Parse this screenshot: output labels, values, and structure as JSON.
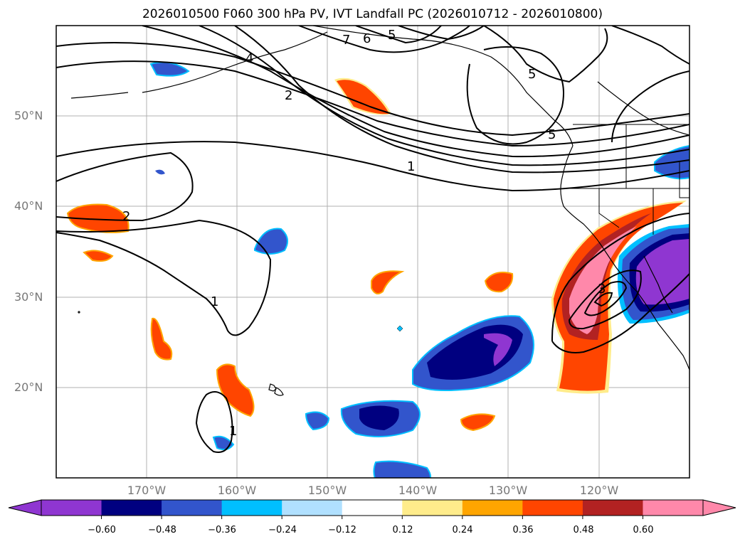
{
  "title": "2026010500 F060 300 hPa PV, IVT Landfall PC (2026010712 - 2026010800)",
  "axes": {
    "lat_labels": [
      "50°N",
      "40°N",
      "30°N",
      "20°N"
    ],
    "lon_labels": [
      "170°W",
      "160°W",
      "150°W",
      "140°W",
      "130°W",
      "120°W"
    ]
  },
  "contour_labels": [
    "7",
    "6",
    "5",
    "4",
    "5",
    "2",
    "5",
    "1",
    "2",
    "1",
    "3",
    "1"
  ],
  "colorbar": {
    "colors": [
      "#8f36d1",
      "#000080",
      "#3255cc",
      "#00bfff",
      "#b0e0ff",
      "#ffffff",
      "#ffec8b",
      "#ffa500",
      "#ff4500",
      "#b22222",
      "#ff88aa"
    ],
    "ticks": [
      "−0.60",
      "−0.48",
      "−0.36",
      "−0.24",
      "−0.12",
      "0.12",
      "0.24",
      "0.36",
      "0.48",
      "0.60"
    ]
  },
  "icons": [
    "coastline-shape",
    "contour-line"
  ]
}
